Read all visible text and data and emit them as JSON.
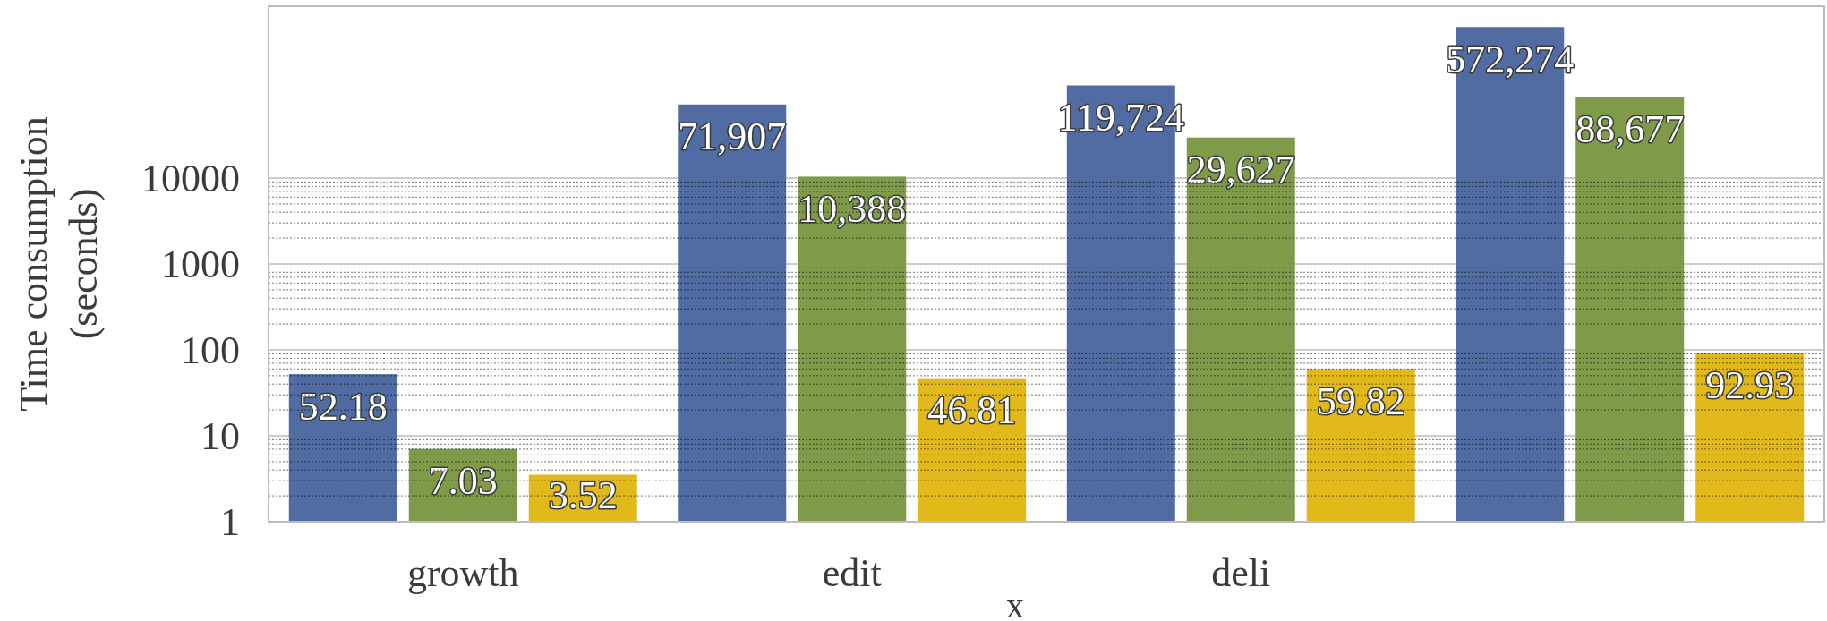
{
  "chart_data": {
    "type": "bar",
    "categories": [
      "growth",
      "edit",
      "deli",
      null
    ],
    "series": [
      {
        "color": "#506ca3",
        "values": [
          52.18,
          71907,
          119724,
          572274
        ],
        "value_labels": [
          "52.18",
          "71,907",
          "119,724",
          "572,274"
        ]
      },
      {
        "color": "#7f9a48",
        "values": [
          7.03,
          10388,
          29627,
          88677
        ],
        "value_labels": [
          "7.03",
          "10,388",
          "29,627",
          "88,677"
        ]
      },
      {
        "color": "#e1b91a",
        "values": [
          3.52,
          46.81,
          59.82,
          92.93
        ],
        "value_labels": [
          "3.52",
          "46.81",
          "59.82",
          "92.93"
        ]
      }
    ],
    "xlabel": "x",
    "ylabel": "Time consumption\n(seconds)",
    "log": true,
    "ylim": [
      1,
      1000000
    ],
    "yticks": [
      1,
      10,
      100,
      1000,
      10000
    ],
    "grid": true
  }
}
